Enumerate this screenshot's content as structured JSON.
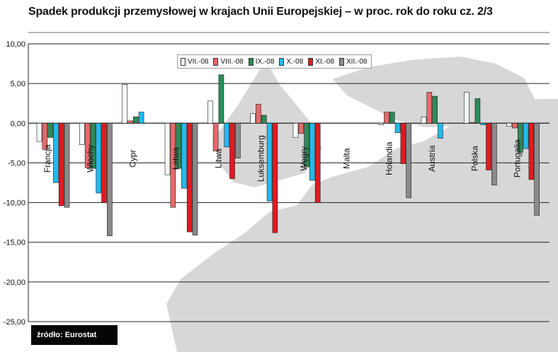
{
  "title": "Spadek produkcji przemysłowej w krajach Unii Europejskiej – w proc. rok  do roku cz. 2/3",
  "source": "źródło: Eurostat",
  "colors": {
    "VII.-08": "#f4fbfb",
    "VIII.-08": "#e66a6a",
    "IX.-08": "#2e8b57",
    "X.-08": "#22bbee",
    "XI.-08": "#e01a22",
    "XII.-08": "#8a8a8a",
    "background_map": "#d7d7d7"
  },
  "chart_data": {
    "type": "bar",
    "title": "Spadek produkcji przemysłowej w krajach Unii Europejskiej – w proc. rok  do roku cz. 2/3",
    "xlabel": "",
    "ylabel": "",
    "ylim": [
      -25,
      10
    ],
    "yticks": [
      "10,00",
      "5,00",
      "0,00",
      "-5,00",
      "-10,00",
      "-15,00",
      "-20,00",
      "-25,00"
    ],
    "ytick_values": [
      10,
      5,
      0,
      -5,
      -10,
      -15,
      -20,
      -25
    ],
    "grid": true,
    "legend_position": "top-center",
    "categories": [
      "Francja",
      "Włochy",
      "Cypr",
      "Łotwa",
      "Litwa",
      "Luksemburg",
      "Węgry",
      "Malta",
      "Holandia",
      "Austria",
      "Polska",
      "Portugalia"
    ],
    "series": [
      {
        "name": "VII.-08",
        "values": [
          -2.3,
          -2.7,
          4.9,
          -6.5,
          2.8,
          1.2,
          -1.8,
          null,
          -0.2,
          0.8,
          3.9,
          -0.4
        ]
      },
      {
        "name": "VIII.-08",
        "values": [
          -3.3,
          -5.6,
          0.3,
          -10.6,
          -3.5,
          2.4,
          -1.3,
          null,
          1.4,
          3.9,
          0.1,
          -0.6
        ]
      },
      {
        "name": "IX.-08",
        "values": [
          -1.8,
          -5.7,
          0.8,
          -5.7,
          6.1,
          1.0,
          -5.5,
          null,
          1.4,
          3.4,
          3.1,
          -3.7
        ]
      },
      {
        "name": "X.-08",
        "values": [
          -7.5,
          -8.8,
          1.4,
          -8.2,
          -3.0,
          -9.8,
          -7.2,
          null,
          -1.2,
          -1.9,
          -0.2,
          -3.2
        ]
      },
      {
        "name": "XI.-08",
        "values": [
          -10.4,
          -10.0,
          null,
          -13.7,
          -7.0,
          -13.8,
          -10.0,
          null,
          -5.1,
          null,
          -5.9,
          -7.1
        ]
      },
      {
        "name": "XII.-08",
        "values": [
          -10.6,
          -14.2,
          null,
          -14.1,
          -4.4,
          null,
          null,
          null,
          -9.4,
          null,
          -7.8,
          -11.6
        ]
      }
    ]
  }
}
